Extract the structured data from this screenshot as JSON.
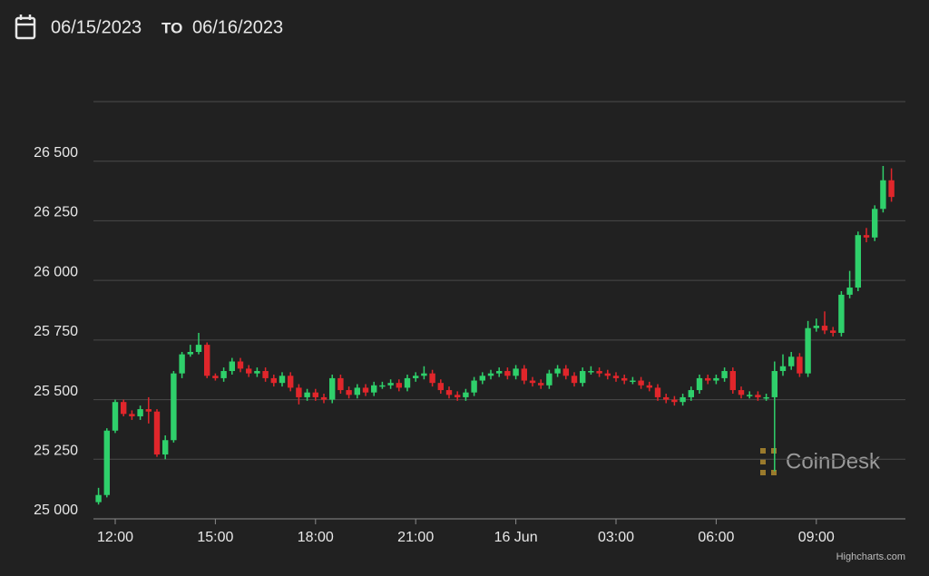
{
  "header": {
    "date_from": "06/15/2023",
    "separator": "TO",
    "date_to": "06/16/2023"
  },
  "chart_data": {
    "type": "candlestick",
    "watermark": "CoinDesk",
    "credits": "Highcharts.com",
    "up_color": "#2fd06b",
    "down_color": "#e0262b",
    "grid": true,
    "ylim": [
      25000,
      26750
    ],
    "yticks": [
      {
        "value": 25000,
        "label": "25 000"
      },
      {
        "value": 25250,
        "label": "25 250"
      },
      {
        "value": 25500,
        "label": "25 500"
      },
      {
        "value": 25750,
        "label": "25 750"
      },
      {
        "value": 26000,
        "label": "26 000"
      },
      {
        "value": 26250,
        "label": "26 250"
      },
      {
        "value": 26500,
        "label": "26 500"
      }
    ],
    "xticks": [
      "12:00",
      "15:00",
      "18:00",
      "21:00",
      {
        "value": "00:00",
        "label": "16 Jun"
      },
      "03:00",
      "06:00",
      "09:00"
    ],
    "categories": [
      "11:30",
      "11:45",
      "12:00",
      "12:15",
      "12:30",
      "12:45",
      "13:00",
      "13:15",
      "13:30",
      "13:45",
      "14:00",
      "14:15",
      "14:30",
      "14:45",
      "15:00",
      "15:15",
      "15:30",
      "15:45",
      "16:00",
      "16:15",
      "16:30",
      "16:45",
      "17:00",
      "17:15",
      "17:30",
      "17:45",
      "18:00",
      "18:15",
      "18:30",
      "18:45",
      "19:00",
      "19:15",
      "19:30",
      "19:45",
      "20:00",
      "20:15",
      "20:30",
      "20:45",
      "21:00",
      "21:15",
      "21:30",
      "21:45",
      "22:00",
      "22:15",
      "22:30",
      "22:45",
      "23:00",
      "23:15",
      "23:30",
      "23:45",
      "00:00",
      "00:15",
      "00:30",
      "00:45",
      "01:00",
      "01:15",
      "01:30",
      "01:45",
      "02:00",
      "02:15",
      "02:30",
      "02:45",
      "03:00",
      "03:15",
      "03:30",
      "03:45",
      "04:00",
      "04:15",
      "04:30",
      "04:45",
      "05:00",
      "05:15",
      "05:30",
      "05:45",
      "06:00",
      "06:15",
      "06:30",
      "06:45",
      "07:00",
      "07:15",
      "07:30",
      "07:45",
      "08:00",
      "08:15",
      "08:30",
      "08:45",
      "09:00",
      "09:15",
      "09:30",
      "09:45",
      "10:00",
      "10:15",
      "10:30",
      "10:45",
      "11:00",
      "11:15"
    ],
    "open": [
      25070,
      25100,
      25370,
      25490,
      25440,
      25430,
      25460,
      25450,
      25270,
      25330,
      25610,
      25690,
      25700,
      25730,
      25600,
      25590,
      25620,
      25660,
      25630,
      25610,
      25620,
      25590,
      25570,
      25600,
      25550,
      25510,
      25530,
      25510,
      25500,
      25590,
      25540,
      25520,
      25550,
      25530,
      25560,
      25560,
      25570,
      25550,
      25590,
      25600,
      25610,
      25570,
      25540,
      25520,
      25510,
      25530,
      25580,
      25600,
      25610,
      25620,
      25600,
      25630,
      25580,
      25570,
      25560,
      25610,
      25630,
      25600,
      25570,
      25620,
      25620,
      25610,
      25600,
      25590,
      25580,
      25580,
      25560,
      25550,
      25510,
      25500,
      25490,
      25510,
      25540,
      25590,
      25580,
      25590,
      25620,
      25540,
      25520,
      25520,
      25510,
      25510,
      25620,
      25640,
      25680,
      25610,
      25800,
      25810,
      25790,
      25780,
      25940,
      25970,
      26190,
      26180,
      26300,
      26420
    ],
    "high": [
      25130,
      25380,
      25500,
      25500,
      25455,
      25475,
      25510,
      25460,
      25350,
      25620,
      25700,
      25730,
      25780,
      25740,
      25610,
      25635,
      25675,
      25675,
      25645,
      25635,
      25635,
      25605,
      25615,
      25615,
      25565,
      25545,
      25545,
      25525,
      25605,
      25605,
      25555,
      25565,
      25565,
      25575,
      25575,
      25585,
      25585,
      25605,
      25615,
      25640,
      25625,
      25585,
      25555,
      25535,
      25545,
      25595,
      25615,
      25625,
      25635,
      25635,
      25645,
      25645,
      25595,
      25585,
      25625,
      25645,
      25645,
      25615,
      25635,
      25640,
      25635,
      25625,
      25615,
      25605,
      25595,
      25595,
      25575,
      25565,
      25525,
      25515,
      25525,
      25555,
      25605,
      25605,
      25605,
      25635,
      25635,
      25555,
      25535,
      25535,
      25525,
      25660,
      25690,
      25700,
      25695,
      25830,
      25840,
      25870,
      25805,
      25955,
      26040,
      26205,
      26220,
      26315,
      26480,
      26470
    ],
    "low": [
      25060,
      25090,
      25360,
      25430,
      25415,
      25415,
      25400,
      25260,
      25250,
      25320,
      25590,
      25680,
      25690,
      25590,
      25580,
      25575,
      25605,
      25615,
      25595,
      25595,
      25575,
      25555,
      25555,
      25535,
      25480,
      25495,
      25495,
      25485,
      25485,
      25525,
      25505,
      25505,
      25515,
      25515,
      25545,
      25545,
      25535,
      25535,
      25575,
      25585,
      25555,
      25525,
      25505,
      25495,
      25495,
      25515,
      25565,
      25585,
      25595,
      25585,
      25585,
      25565,
      25555,
      25545,
      25545,
      25595,
      25585,
      25555,
      25555,
      25605,
      25595,
      25585,
      25575,
      25565,
      25565,
      25545,
      25535,
      25495,
      25485,
      25475,
      25475,
      25495,
      25525,
      25565,
      25565,
      25575,
      25525,
      25505,
      25505,
      25495,
      25495,
      25200,
      25600,
      25625,
      25595,
      25595,
      25785,
      25775,
      25765,
      25765,
      25925,
      25955,
      26160,
      26165,
      26285,
      26330
    ],
    "close": [
      25100,
      25370,
      25490,
      25440,
      25430,
      25460,
      25450,
      25270,
      25330,
      25610,
      25690,
      25700,
      25730,
      25600,
      25590,
      25620,
      25660,
      25630,
      25610,
      25620,
      25590,
      25570,
      25600,
      25550,
      25510,
      25530,
      25510,
      25500,
      25590,
      25540,
      25520,
      25550,
      25530,
      25560,
      25560,
      25570,
      25550,
      25590,
      25600,
      25610,
      25570,
      25540,
      25520,
      25510,
      25530,
      25580,
      25600,
      25610,
      25620,
      25600,
      25630,
      25580,
      25570,
      25560,
      25610,
      25630,
      25600,
      25570,
      25620,
      25620,
      25610,
      25600,
      25590,
      25580,
      25580,
      25560,
      25550,
      25510,
      25500,
      25490,
      25510,
      25540,
      25590,
      25580,
      25590,
      25620,
      25540,
      25520,
      25520,
      25510,
      25510,
      25620,
      25640,
      25680,
      25610,
      25800,
      25810,
      25790,
      25780,
      25940,
      25970,
      26190,
      26180,
      26300,
      26420,
      26350
    ]
  }
}
